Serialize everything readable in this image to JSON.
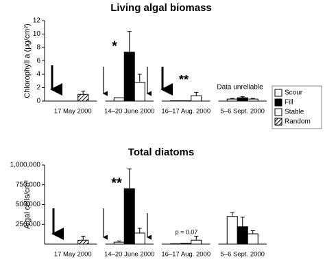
{
  "chart_data": [
    {
      "type": "bar",
      "title": "Living algal biomass",
      "ylabel": "Chlorophyll a (μg/cm²)",
      "categories": [
        "17 May 2000",
        "14–20 June 2000",
        "16–17 Aug. 2000",
        "5–6 Sept. 2000"
      ],
      "ylim": [
        0,
        12
      ],
      "yticks": [
        0,
        2,
        4,
        6,
        8,
        10,
        12
      ],
      "series": [
        {
          "name": "Scour",
          "color": "#ffffff",
          "values": [
            null,
            0.5,
            0.05,
            0.3
          ],
          "errors": [
            null,
            null,
            null,
            0.1
          ]
        },
        {
          "name": "Fill",
          "color": "#000000",
          "values": [
            null,
            7.3,
            0.05,
            0.5
          ],
          "errors": [
            null,
            3.1,
            null,
            0.15
          ]
        },
        {
          "name": "Stable",
          "color": "#ffffff",
          "values": [
            null,
            2.8,
            0.8,
            0.3
          ],
          "errors": [
            null,
            1.2,
            0.5,
            0.1
          ]
        },
        {
          "name": "Random",
          "color": "#ffffff",
          "pattern": "hatch",
          "values": [
            1.0,
            null,
            null,
            null
          ],
          "errors": [
            0.5,
            null,
            null,
            null
          ]
        }
      ],
      "annotations": [
        "*",
        "**",
        "Data unreliable"
      ],
      "legend": "right"
    },
    {
      "type": "bar",
      "title": "Total diatoms",
      "ylabel": "Algal cells/cm²",
      "categories": [
        "17 May 2000",
        "14–20 June 2000",
        "16–17 Aug. 2000",
        "5–6 Sept. 2000"
      ],
      "ylim": [
        0,
        1000000
      ],
      "yticks": [
        {
          "value": 250000,
          "label": "250,000"
        },
        {
          "value": 500000,
          "label": "500,000"
        },
        {
          "value": 750000,
          "label": "750,000"
        },
        {
          "value": 1000000,
          "label": "1,000,000"
        }
      ],
      "series": [
        {
          "name": "Scour",
          "color": "#ffffff",
          "values": [
            null,
            25000,
            5000,
            350000
          ],
          "errors": [
            null,
            15000,
            null,
            50000
          ]
        },
        {
          "name": "Fill",
          "color": "#000000",
          "values": [
            null,
            700000,
            10000,
            220000
          ],
          "errors": [
            null,
            250000,
            null,
            120000
          ]
        },
        {
          "name": "Stable",
          "color": "#ffffff",
          "values": [
            null,
            140000,
            50000,
            130000
          ],
          "errors": [
            null,
            60000,
            50000,
            40000
          ]
        },
        {
          "name": "Random",
          "color": "#ffffff",
          "pattern": "hatch",
          "values": [
            50000,
            null,
            null,
            null
          ],
          "errors": [
            50000,
            null,
            null,
            null
          ]
        }
      ],
      "annotations": [
        "**",
        "p = 0.07"
      ]
    }
  ]
}
